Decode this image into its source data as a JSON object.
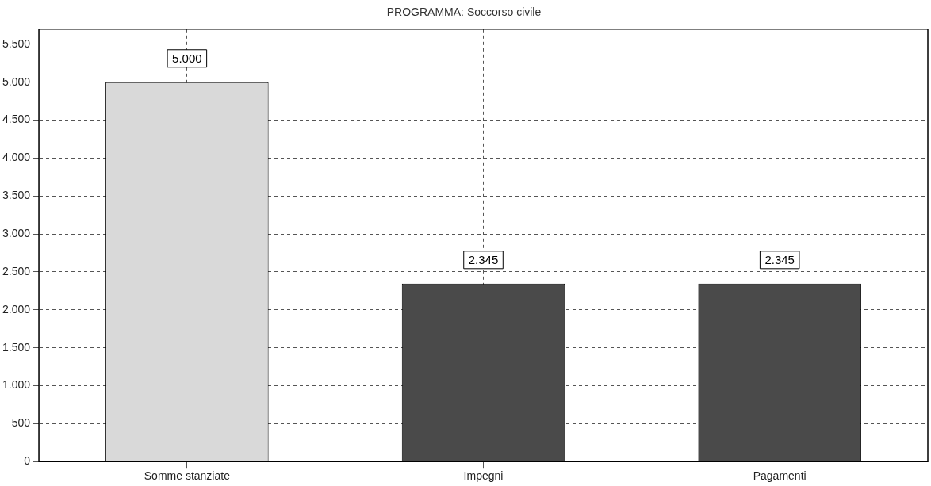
{
  "chart_data": {
    "type": "bar",
    "title": "PROGRAMMA: Soccorso civile",
    "categories": [
      "Somme stanziate",
      "Impegni",
      "Pagamenti"
    ],
    "values": [
      5000,
      2345,
      2345
    ],
    "colors": [
      "#d9d9d9",
      "#4a4a4a",
      "#4a4a4a"
    ],
    "value_labels": [
      "5.000",
      "2.345",
      "2.345"
    ],
    "ylim": [
      0,
      5700
    ],
    "yticks": [
      {
        "value": 0,
        "label": "0"
      },
      {
        "value": 500,
        "label": "500"
      },
      {
        "value": 1000,
        "label": "1.000"
      },
      {
        "value": 1500,
        "label": "1.500"
      },
      {
        "value": 2000,
        "label": "2.000"
      },
      {
        "value": 2500,
        "label": "2.500"
      },
      {
        "value": 3000,
        "label": "3.000"
      },
      {
        "value": 3500,
        "label": "3.500"
      },
      {
        "value": 4000,
        "label": "4.000"
      },
      {
        "value": 4500,
        "label": "4.500"
      },
      {
        "value": 5000,
        "label": "5.000"
      },
      {
        "value": 5500,
        "label": "5.500"
      }
    ],
    "grid": true,
    "legend": false
  }
}
